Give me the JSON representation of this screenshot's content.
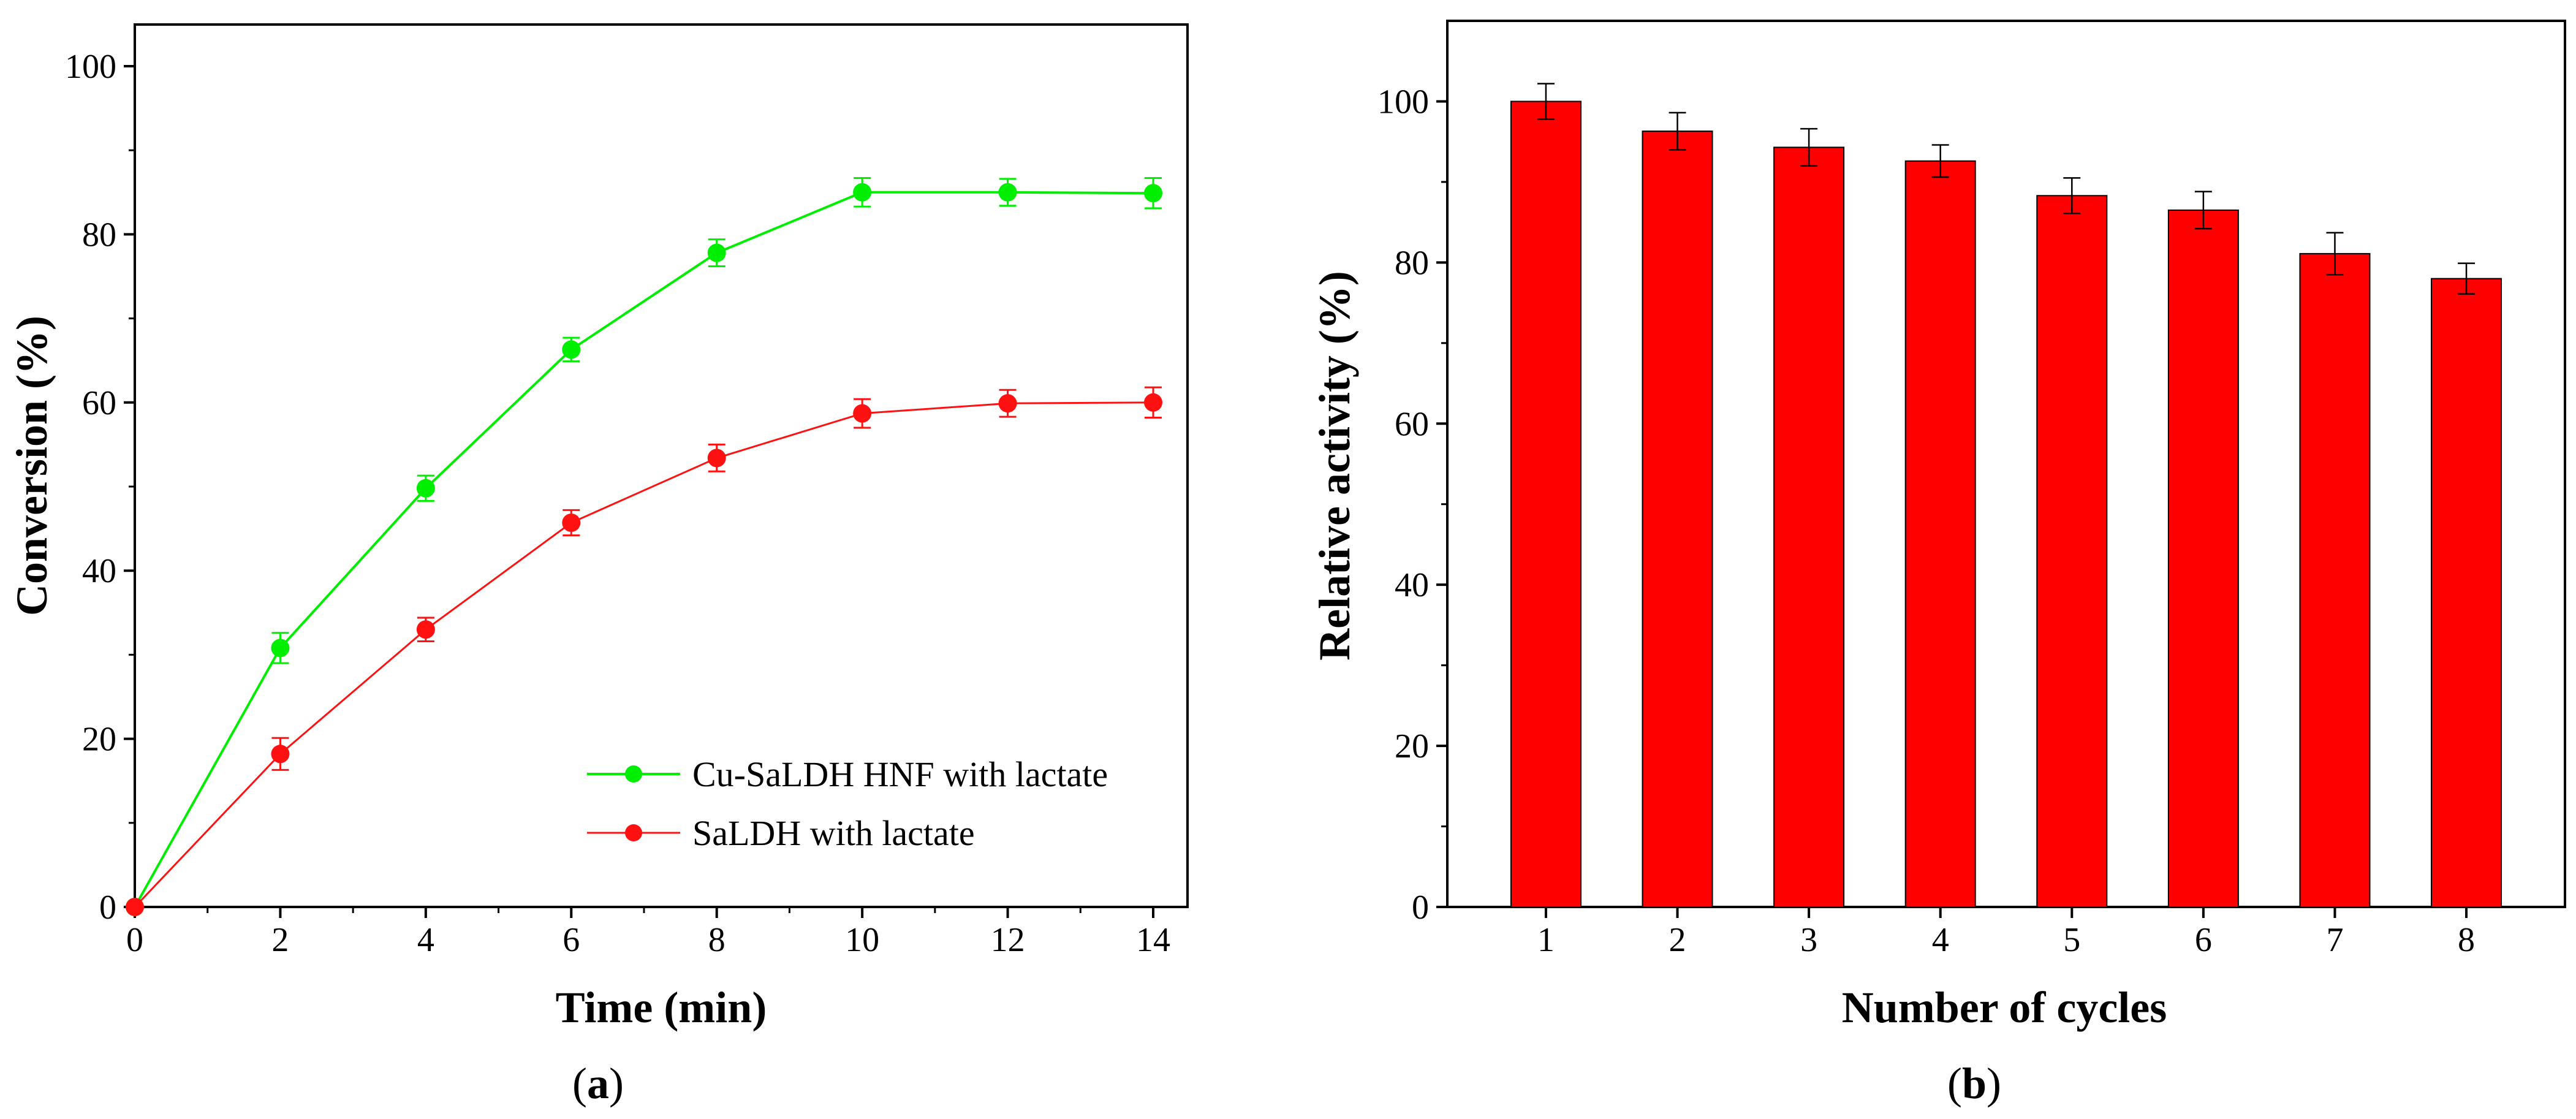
{
  "chart_data": [
    {
      "type": "line",
      "panel_label": "a",
      "xlabel": "Time (min)",
      "ylabel": "Conversion (%)",
      "xlim": [
        0,
        14
      ],
      "ylim": [
        0,
        100
      ],
      "xticks": [
        0,
        2,
        4,
        6,
        8,
        10,
        12,
        14
      ],
      "yticks": [
        0,
        20,
        40,
        60,
        80,
        100
      ],
      "grid": false,
      "legend_position": "bottom-right",
      "x": [
        0,
        2,
        4,
        6,
        8,
        10,
        12,
        14
      ],
      "series": [
        {
          "name": "Cu-SaLDH HNF with lactate",
          "color": "#00ee00",
          "values": [
            0,
            30.8,
            49.8,
            66.3,
            77.8,
            85.0,
            85.0,
            84.9
          ],
          "errors": [
            0,
            1.8,
            1.5,
            1.4,
            1.6,
            1.7,
            1.6,
            1.8
          ]
        },
        {
          "name": "SaLDH with lactate",
          "color": "#ff1111",
          "values": [
            0,
            18.2,
            33.0,
            45.7,
            53.4,
            58.7,
            59.9,
            60.0
          ],
          "errors": [
            0,
            1.9,
            1.4,
            1.5,
            1.6,
            1.7,
            1.6,
            1.8
          ]
        }
      ]
    },
    {
      "type": "bar",
      "panel_label": "b",
      "xlabel": "Number of cycles",
      "ylabel": "Relative activity (%)",
      "ylim": [
        0,
        110
      ],
      "yticks": [
        0,
        20,
        40,
        60,
        80,
        100
      ],
      "grid": false,
      "bar_color": "#ff0000",
      "categories": [
        "1",
        "2",
        "3",
        "4",
        "5",
        "6",
        "7",
        "8"
      ],
      "values": [
        100.0,
        96.3,
        94.3,
        92.6,
        88.3,
        86.5,
        81.1,
        78.0
      ],
      "errors": [
        2.2,
        2.3,
        2.3,
        2.0,
        2.2,
        2.3,
        2.6,
        1.9
      ]
    }
  ]
}
